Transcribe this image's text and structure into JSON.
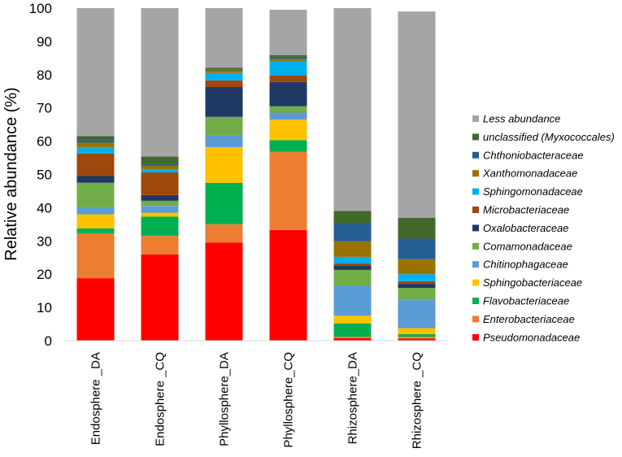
{
  "chart_data": {
    "type": "bar",
    "stacked": true,
    "title": "",
    "xlabel": "",
    "ylabel": "Relative abundance (%)",
    "ylim": [
      0,
      100
    ],
    "yticks": [
      0,
      10,
      20,
      30,
      40,
      50,
      60,
      70,
      80,
      90,
      100
    ],
    "categories": [
      "Endosphere _DA",
      "Endosphere _CQ",
      "Phyllosphere_DA",
      "Phyllosphere_CQ",
      "Rhizosphere_DA",
      "Rhizosphere _CQ"
    ],
    "legend_position": "right",
    "series": [
      {
        "name": "Pseudomonadaceae",
        "color": "#ff0000",
        "values": [
          18.8,
          26.0,
          29.5,
          33.3,
          0.8,
          0.6
        ]
      },
      {
        "name": "Enterobacteriaceae",
        "color": "#ed7d31",
        "values": [
          13.5,
          5.5,
          5.5,
          23.5,
          0.4,
          0.6
        ]
      },
      {
        "name": "Flavobacteriaceae",
        "color": "#00b050",
        "values": [
          1.5,
          5.8,
          12.5,
          3.5,
          4.0,
          0.8
        ]
      },
      {
        "name": "Sphingobacteriaceae",
        "color": "#ffc000",
        "values": [
          4.2,
          1.2,
          10.7,
          6.2,
          2.3,
          1.8
        ]
      },
      {
        "name": "Chitinophagaceae",
        "color": "#5b9bd5",
        "values": [
          2.0,
          2.0,
          3.5,
          2.1,
          9.0,
          8.5
        ]
      },
      {
        "name": "Comamonadaceae",
        "color": "#70ad47",
        "values": [
          7.5,
          1.6,
          5.6,
          1.9,
          4.8,
          3.6
        ]
      },
      {
        "name": "Oxalobacteraceae",
        "color": "#1f3864",
        "values": [
          2.0,
          1.7,
          9.0,
          7.3,
          1.2,
          1.2
        ]
      },
      {
        "name": "Microbacteriaceae",
        "color": "#9e480e",
        "values": [
          6.8,
          6.8,
          2.0,
          2.0,
          0.8,
          0.8
        ]
      },
      {
        "name": "Sphingomonadaceae",
        "color": "#00b0f0",
        "values": [
          1.7,
          0.8,
          2.2,
          4.3,
          1.9,
          2.1
        ]
      },
      {
        "name": "Xanthomonadaceae",
        "color": "#997300",
        "values": [
          1.6,
          1.2,
          0.8,
          0.7,
          4.7,
          4.5
        ]
      },
      {
        "name": "Chthoniobacteraceae",
        "color": "#255e91",
        "values": [
          0.7,
          0.6,
          0.3,
          0.6,
          5.3,
          6.2
        ]
      },
      {
        "name": "unclassified (Myxococcales)",
        "color": "#43682b",
        "values": [
          1.2,
          2.2,
          0.5,
          0.5,
          3.8,
          6.3
        ]
      },
      {
        "name": "Less abundance",
        "color": "#a5a5a5",
        "values": [
          38.5,
          44.6,
          17.9,
          13.6,
          61.0,
          62.0
        ]
      }
    ]
  }
}
